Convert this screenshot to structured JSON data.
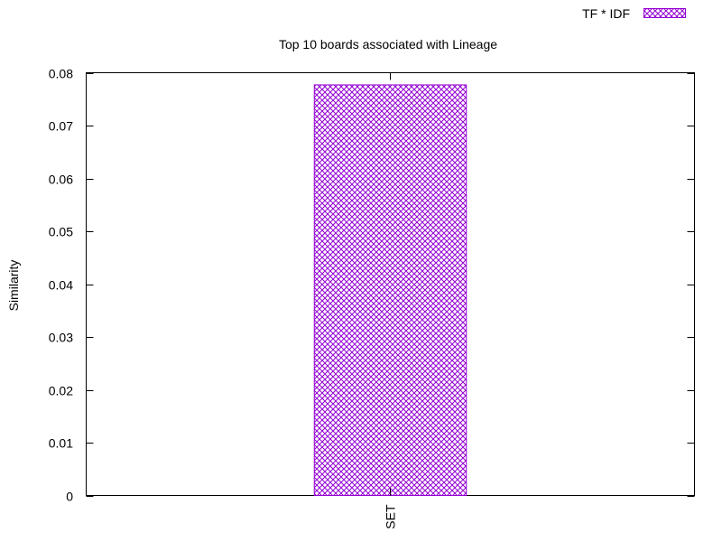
{
  "chart_data": {
    "type": "bar",
    "title": "Top 10 boards associated with Lineage",
    "xlabel": "",
    "ylabel": "Similarity",
    "categories": [
      "SET"
    ],
    "series": [
      {
        "name": "TF * IDF",
        "values": [
          0.0777
        ],
        "color": "#9400d3",
        "pattern": "crosshatch"
      }
    ],
    "ylim": [
      0,
      0.08
    ],
    "yticks": [
      "0",
      "0.01",
      "0.02",
      "0.03",
      "0.04",
      "0.05",
      "0.06",
      "0.07",
      "0.08"
    ],
    "grid": false,
    "legend_position": "top-right"
  }
}
